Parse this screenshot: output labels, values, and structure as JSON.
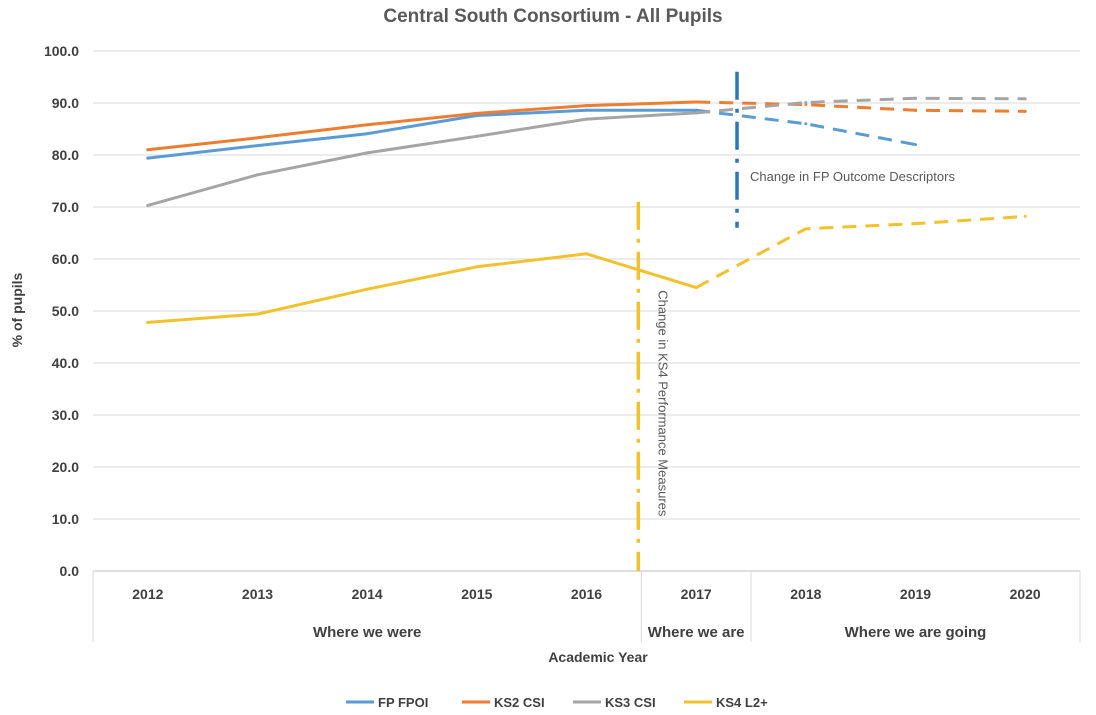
{
  "chart_data": {
    "type": "line",
    "title": "Central South Consortium - All Pupils",
    "ylabel": "% of pupils",
    "xlabel": "Academic Year",
    "ylim": [
      0,
      100
    ],
    "yticks": [
      "100.0",
      "90.0",
      "80.0",
      "70.0",
      "60.0",
      "50.0",
      "40.0",
      "30.0",
      "20.0",
      "10.0",
      "0.0"
    ],
    "categories": [
      "2012",
      "2013",
      "2014",
      "2015",
      "2016",
      "2017",
      "2018",
      "2019",
      "2020"
    ],
    "category_groups": [
      {
        "label": "Where we were",
        "span": [
          0,
          4
        ]
      },
      {
        "label": "Where we are",
        "span": [
          5,
          5
        ]
      },
      {
        "label": "Where we are going",
        "span": [
          6,
          8
        ]
      }
    ],
    "grid": true,
    "legend_position": "bottom",
    "series": [
      {
        "name": "FP FPOI",
        "color": "#5B9BD5",
        "values": [
          79.4,
          81.8,
          84.1,
          87.6,
          88.6,
          88.6,
          86.0,
          82.0,
          null
        ],
        "projected_from": 5
      },
      {
        "name": "KS2 CSI",
        "color": "#ED7D31",
        "values": [
          81.0,
          83.3,
          85.8,
          88.0,
          89.5,
          90.2,
          89.7,
          88.6,
          88.4
        ],
        "projected_from": 5
      },
      {
        "name": "KS3 CSI",
        "color": "#A5A5A5",
        "values": [
          70.3,
          76.2,
          80.4,
          83.6,
          86.9,
          88.1,
          90.1,
          90.9,
          90.8
        ],
        "projected_from": 5
      },
      {
        "name": "KS4 L2+",
        "color": "#F2C12E",
        "values": [
          47.8,
          49.4,
          54.2,
          58.5,
          61.0,
          54.5,
          65.8,
          66.8,
          68.2
        ],
        "projected_from": 5
      }
    ],
    "annotations": [
      {
        "text": "Change in FP Outcome Descriptors",
        "color": "#2E75B6",
        "position": "between 2017 and 2018",
        "yrange": [
          66,
          96
        ]
      },
      {
        "text": "Change in KS4 Performance Measures",
        "color": "#F2C12E",
        "position": "between 2016 and 2017",
        "yrange": [
          0,
          71
        ]
      }
    ]
  }
}
